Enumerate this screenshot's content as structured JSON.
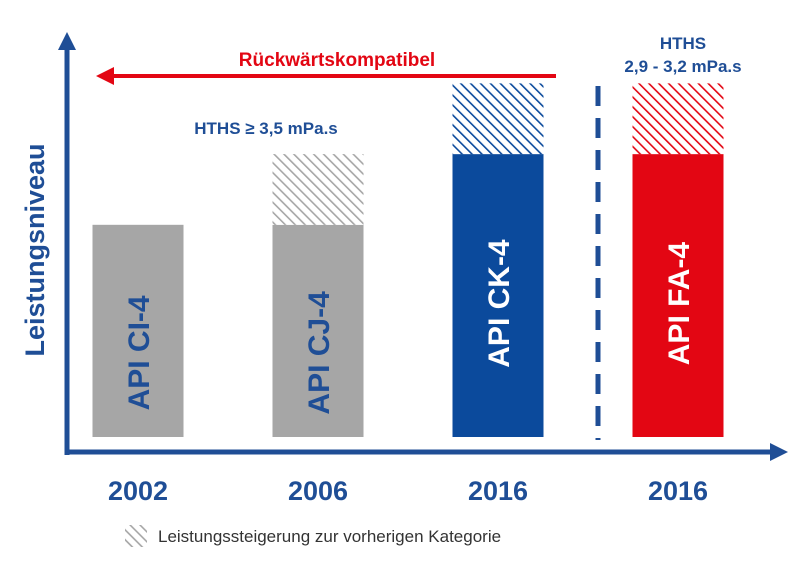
{
  "chart_data": {
    "type": "bar",
    "title": "",
    "xlabel": "",
    "ylabel": "Leistungsniveau",
    "categories": [
      "2002",
      "2006",
      "2016",
      "2016"
    ],
    "bars": [
      {
        "label": "API CI-4",
        "base": 3.0,
        "improvement": 0.0,
        "color": "#a6a6a6",
        "label_color": "#1f4e96"
      },
      {
        "label": "API CJ-4",
        "base": 3.0,
        "improvement": 1.0,
        "color": "#a6a6a6",
        "label_color": "#1f4e96"
      },
      {
        "label": "API CK-4",
        "base": 4.0,
        "improvement": 1.0,
        "color": "#0b4a9c",
        "label_color": "#ffffff"
      },
      {
        "label": "API FA-4",
        "base": 4.0,
        "improvement": 1.0,
        "color": "#e30613",
        "label_color": "#ffffff"
      }
    ],
    "ylim": [
      0,
      5.5
    ],
    "grid": false,
    "annotations": {
      "backward_label": "Rückwärtskompatibel",
      "hths_high": "HTHS ≥ 3,5 mPa.s",
      "hths_low_line1": "HTHS",
      "hths_low_line2": "2,9 - 3,2 mPa.s"
    },
    "legend": {
      "label": "Leistungssteigerung zur vorherigen Kategorie",
      "placement": "bottom"
    }
  },
  "colors": {
    "axis": "#1f4e96",
    "text_blue": "#1f4e96",
    "arrow_red": "#e30613",
    "grey": "#a6a6a6",
    "blue": "#0b4a9c",
    "red": "#e30613"
  }
}
